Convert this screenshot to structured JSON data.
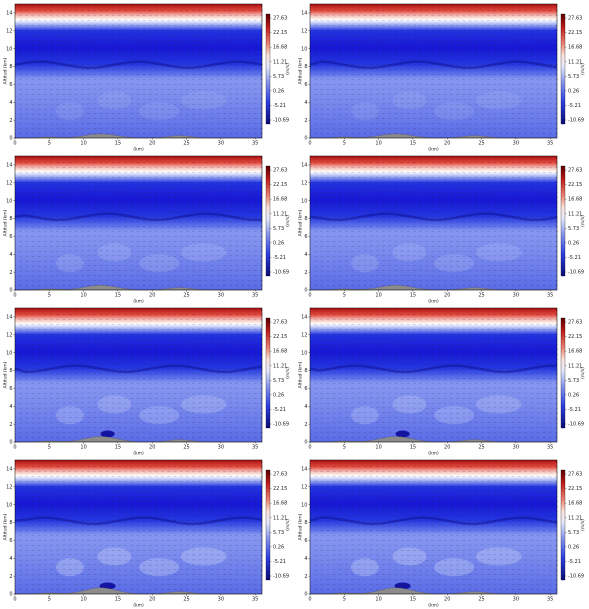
{
  "colors": {
    "cmap_low": "#0a0a78",
    "cmap_mid": "#ffffff",
    "cmap_high": "#8b0000",
    "terrain": "#8c8c8c"
  },
  "chart_data": {
    "type": "heatmap",
    "panel_count": 8,
    "layout": "4 rows x 2 columns",
    "xlabel": "(km)",
    "ylabel": "Altitud (km)",
    "colorbar_label": "(m/s)",
    "x_ticks": [
      "0",
      "5",
      "10",
      "15",
      "20",
      "25",
      "30",
      "35"
    ],
    "y_ticks": [
      "0",
      "2",
      "4",
      "6",
      "8",
      "10",
      "12",
      "14"
    ],
    "xlim": [
      0,
      36
    ],
    "ylim": [
      0,
      15
    ],
    "colorbar_ticks": [
      "27.63",
      "22.15",
      "16.68",
      "11.21",
      "5.73",
      "0.26",
      "-5.21",
      "-10.69"
    ],
    "colorbar_range": [
      -10.69,
      27.63
    ],
    "features": {
      "jet_max_altitude_km": [
        14,
        15
      ],
      "terrain_peaks_km": [
        12,
        24
      ],
      "wind_vectors": true
    }
  }
}
